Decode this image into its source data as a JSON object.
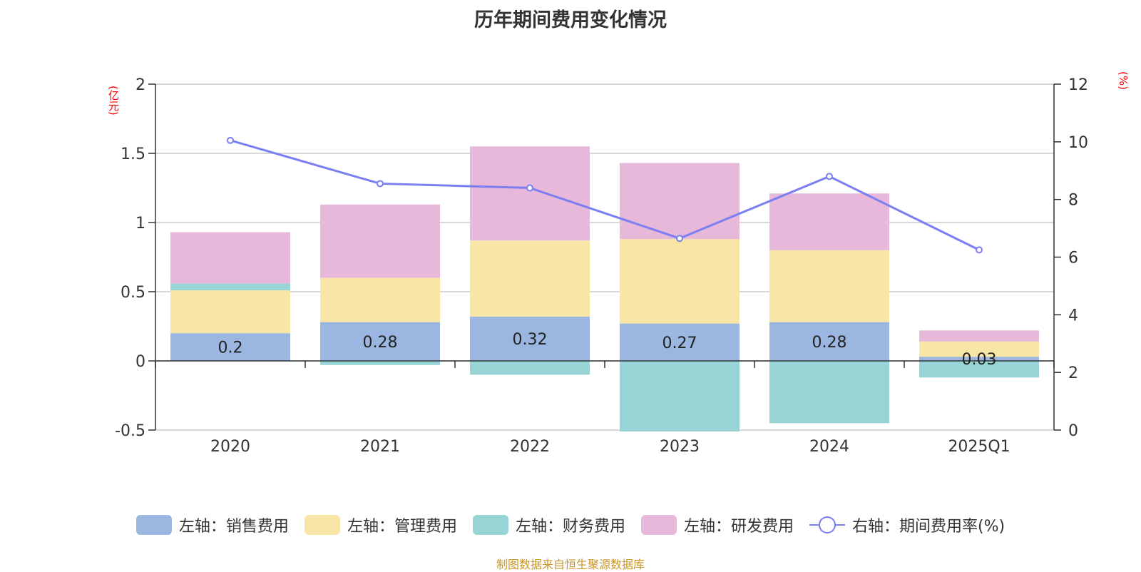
{
  "title": "历年期间费用变化情况",
  "source": "制图数据来自恒生聚源数据库",
  "chart_data": {
    "type": "bar",
    "stacked": true,
    "categories": [
      "2020",
      "2021",
      "2022",
      "2023",
      "2024",
      "2025Q1"
    ],
    "left_axis": {
      "unit": "(亿元)",
      "ylim": [
        -0.5,
        2
      ],
      "ticks": [
        "-0.5",
        "0",
        "0.5",
        "1",
        "1.5",
        "2"
      ],
      "tick_values": [
        -0.5,
        0,
        0.5,
        1,
        1.5,
        2
      ]
    },
    "right_axis": {
      "unit": "(%)",
      "ylim": [
        0,
        12
      ],
      "ticks": [
        "0",
        "2",
        "4",
        "6",
        "8",
        "10",
        "12"
      ],
      "tick_values": [
        0,
        2,
        4,
        6,
        8,
        10,
        12
      ]
    },
    "series": [
      {
        "name": "左轴：销售费用",
        "color": "#9bb6e0",
        "values": [
          0.2,
          0.28,
          0.32,
          0.27,
          0.28,
          0.03
        ],
        "labels": [
          "0.2",
          "0.28",
          "0.32",
          "0.27",
          "0.28",
          "0.03"
        ]
      },
      {
        "name": "左轴：管理费用",
        "color": "#f8e6a6",
        "values": [
          0.31,
          0.32,
          0.55,
          0.61,
          0.52,
          0.11
        ]
      },
      {
        "name": "左轴：财务费用",
        "color": "#98d4d5",
        "values": [
          0.05,
          -0.03,
          -0.1,
          -0.51,
          -0.45,
          -0.12
        ]
      },
      {
        "name": "左轴：研发费用",
        "color": "#e7b8da",
        "values": [
          0.37,
          0.53,
          0.68,
          0.55,
          0.41,
          0.08
        ]
      }
    ],
    "line_series": {
      "name": "右轴：期间费用率(%)",
      "color": "#7b7ff0",
      "values": [
        10.05,
        8.55,
        8.4,
        6.65,
        8.8,
        6.25
      ]
    },
    "grid": true,
    "legend_position": "bottom"
  }
}
